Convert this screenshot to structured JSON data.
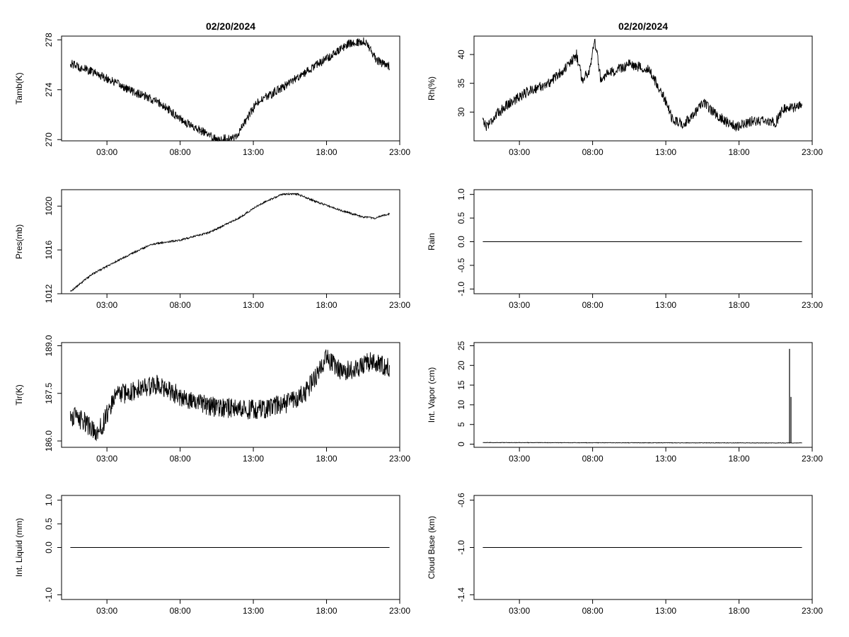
{
  "chart_data": [
    {
      "type": "line",
      "col": 0,
      "row": 0,
      "title": "02/20/2024",
      "ylabel": "Tamb(K)",
      "xlabel": "",
      "x_range_hours": [
        0.5,
        22.3
      ],
      "xlim": [
        -0.1,
        23.0
      ],
      "ylim": [
        269.9,
        278.3
      ],
      "y_ticks": [
        "270",
        "274",
        "278"
      ],
      "x_ticks": [
        "03:00",
        "08:00",
        "13:00",
        "18:00",
        "23:00"
      ],
      "key_points": [
        [
          0.5,
          276.1
        ],
        [
          2.5,
          275.2
        ],
        [
          4.5,
          274.0
        ],
        [
          6.5,
          273.0
        ],
        [
          8.5,
          271.3
        ],
        [
          10.5,
          270.0
        ],
        [
          11.8,
          270.2
        ],
        [
          13.2,
          272.9
        ],
        [
          15.0,
          274.2
        ],
        [
          17.5,
          276.1
        ],
        [
          19.5,
          277.7
        ],
        [
          20.6,
          277.9
        ],
        [
          21.5,
          276.3
        ],
        [
          22.3,
          275.9
        ]
      ],
      "noise": 0.35
    },
    {
      "type": "line",
      "col": 1,
      "row": 0,
      "title": "02/20/2024",
      "ylabel": "Rh(%)",
      "xlabel": "",
      "x_range_hours": [
        0.5,
        22.3
      ],
      "xlim": [
        -0.1,
        23.0
      ],
      "ylim": [
        25.0,
        43.2
      ],
      "y_ticks": [
        "30",
        "35",
        "40"
      ],
      "x_ticks": [
        "03:00",
        "08:00",
        "13:00",
        "18:00",
        "23:00"
      ],
      "key_points": [
        [
          0.5,
          29.0
        ],
        [
          0.7,
          27.5
        ],
        [
          2.0,
          31.0
        ],
        [
          3.5,
          33.5
        ],
        [
          5.0,
          35.0
        ],
        [
          6.5,
          38.5
        ],
        [
          6.9,
          40.0
        ],
        [
          7.3,
          35.5
        ],
        [
          7.8,
          37.5
        ],
        [
          8.15,
          42.5
        ],
        [
          8.6,
          35.0
        ],
        [
          9.0,
          36.5
        ],
        [
          10.5,
          38.3
        ],
        [
          11.8,
          37.5
        ],
        [
          12.8,
          33.0
        ],
        [
          13.5,
          28.5
        ],
        [
          14.3,
          28.0
        ],
        [
          15.0,
          30.0
        ],
        [
          15.6,
          31.5
        ],
        [
          16.5,
          29.5
        ],
        [
          17.3,
          28.0
        ],
        [
          17.8,
          27.5
        ],
        [
          19.0,
          28.5
        ],
        [
          20.5,
          28.2
        ],
        [
          21.0,
          30.5
        ],
        [
          22.3,
          31.0
        ]
      ],
      "noise": 0.9
    },
    {
      "type": "line",
      "col": 0,
      "row": 1,
      "title": "",
      "ylabel": "Pres(mb)",
      "xlabel": "",
      "x_range_hours": [
        0.5,
        22.3
      ],
      "xlim": [
        -0.1,
        23.0
      ],
      "ylim": [
        1012.0,
        1021.5
      ],
      "y_ticks": [
        "1012",
        "1016",
        "1020"
      ],
      "x_ticks": [
        "03:00",
        "08:00",
        "13:00",
        "18:00",
        "23:00"
      ],
      "key_points": [
        [
          0.5,
          1012.2
        ],
        [
          2.0,
          1013.8
        ],
        [
          4.0,
          1015.2
        ],
        [
          6.0,
          1016.5
        ],
        [
          8.0,
          1016.9
        ],
        [
          10.0,
          1017.6
        ],
        [
          12.0,
          1018.9
        ],
        [
          13.5,
          1020.2
        ],
        [
          15.0,
          1021.1
        ],
        [
          16.0,
          1021.1
        ],
        [
          17.5,
          1020.3
        ],
        [
          19.0,
          1019.6
        ],
        [
          20.5,
          1019.0
        ],
        [
          21.3,
          1018.9
        ],
        [
          22.3,
          1019.3
        ]
      ],
      "noise": 0.08
    },
    {
      "type": "line",
      "col": 1,
      "row": 1,
      "title": "",
      "ylabel": "Rain",
      "xlabel": "",
      "x_range_hours": [
        0.5,
        22.3
      ],
      "xlim": [
        -0.1,
        23.0
      ],
      "ylim": [
        -1.1,
        1.1
      ],
      "y_ticks": [
        "-1.0",
        "-0.5",
        "0.0",
        "0.5",
        "1.0"
      ],
      "x_ticks": [
        "03:00",
        "08:00",
        "13:00",
        "18:00",
        "23:00"
      ],
      "key_points": [
        [
          0.5,
          0.0
        ],
        [
          22.3,
          0.0
        ]
      ],
      "noise": 0
    },
    {
      "type": "line",
      "col": 0,
      "row": 2,
      "title": "",
      "ylabel": "Tir(K)",
      "xlabel": "",
      "x_range_hours": [
        0.5,
        22.3
      ],
      "xlim": [
        -0.1,
        23.0
      ],
      "ylim": [
        185.8,
        189.1
      ],
      "y_ticks": [
        "186.0",
        "187.5",
        "189.0"
      ],
      "x_ticks": [
        "03:00",
        "08:00",
        "13:00",
        "18:00",
        "23:00"
      ],
      "key_points": [
        [
          0.5,
          186.8
        ],
        [
          1.5,
          186.6
        ],
        [
          2.3,
          186.2
        ],
        [
          2.8,
          186.6
        ],
        [
          3.5,
          187.4
        ],
        [
          5.0,
          187.6
        ],
        [
          6.5,
          187.8
        ],
        [
          8.0,
          187.4
        ],
        [
          10.0,
          187.1
        ],
        [
          12.0,
          187.0
        ],
        [
          13.5,
          187.0
        ],
        [
          15.5,
          187.2
        ],
        [
          16.5,
          187.5
        ],
        [
          17.5,
          188.2
        ],
        [
          18.0,
          188.6
        ],
        [
          19.0,
          188.2
        ],
        [
          20.0,
          188.3
        ],
        [
          21.0,
          188.5
        ],
        [
          22.3,
          188.3
        ]
      ],
      "noise": 0.32
    },
    {
      "type": "line",
      "col": 1,
      "row": 2,
      "title": "",
      "ylabel": "Int. Vapor (cm)",
      "xlabel": "",
      "x_range_hours": [
        0.5,
        22.3
      ],
      "xlim": [
        -0.1,
        23.0
      ],
      "ylim": [
        -0.8,
        25.8
      ],
      "y_ticks": [
        "0",
        "5",
        "10",
        "15",
        "20",
        "25"
      ],
      "x_ticks": [
        "03:00",
        "08:00",
        "13:00",
        "18:00",
        "23:00"
      ],
      "key_points": [
        [
          0.5,
          0.4
        ],
        [
          22.3,
          0.3
        ]
      ],
      "noise": 0.06,
      "spikes": [
        [
          21.45,
          24.2
        ],
        [
          21.55,
          12.0
        ]
      ]
    },
    {
      "type": "line",
      "col": 0,
      "row": 3,
      "title": "",
      "ylabel": "Int. Liquid (mm)",
      "xlabel": "",
      "x_range_hours": [
        0.5,
        22.3
      ],
      "xlim": [
        -0.1,
        23.0
      ],
      "ylim": [
        -1.1,
        1.1
      ],
      "y_ticks": [
        "-1.0",
        "0.0",
        "0.5",
        "1.0"
      ],
      "x_ticks": [
        "03:00",
        "08:00",
        "13:00",
        "18:00",
        "23:00"
      ],
      "key_points": [
        [
          0.5,
          0.0
        ],
        [
          22.3,
          0.0
        ]
      ],
      "noise": 0
    },
    {
      "type": "line",
      "col": 1,
      "row": 3,
      "title": "",
      "ylabel": "Cloud Base (km)",
      "xlabel": "",
      "x_range_hours": [
        0.5,
        22.3
      ],
      "xlim": [
        -0.1,
        23.0
      ],
      "ylim": [
        -1.44,
        -0.56
      ],
      "y_ticks": [
        "-1.4",
        "-1.0",
        "-0.6"
      ],
      "x_ticks": [
        "03:00",
        "08:00",
        "13:00",
        "18:00",
        "23:00"
      ],
      "key_points": [
        [
          0.5,
          -1.0
        ],
        [
          22.3,
          -1.0
        ]
      ],
      "noise": 0
    }
  ]
}
